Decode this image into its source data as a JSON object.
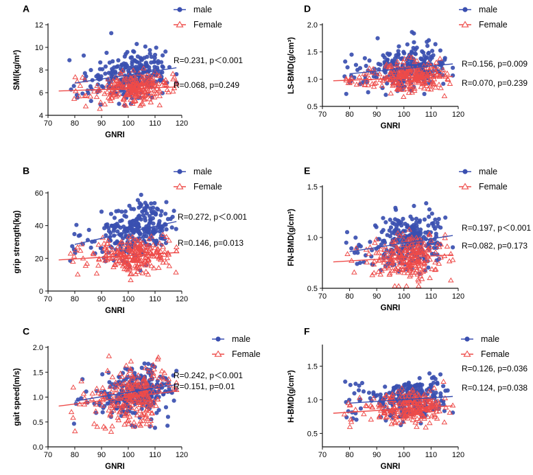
{
  "figure": {
    "panel_count": 6
  },
  "colors": {
    "male": "#3a4fb0",
    "female": "#ee4b49",
    "axis": "#111111"
  },
  "legend": {
    "male_label": "male",
    "female_label": "Female"
  },
  "chart_data": [
    {
      "id": "A",
      "letter": "A",
      "type": "scatter",
      "xlabel": "GNRI",
      "ylabel": "SMI(kg/m²)",
      "xlim": [
        70,
        120
      ],
      "ylim": [
        4,
        12
      ],
      "xticks": [
        70,
        80,
        90,
        100,
        110,
        120
      ],
      "yticks": [
        4,
        6,
        8,
        10,
        12
      ],
      "ytick_labels": [
        "4",
        "6",
        "8",
        "10",
        "12"
      ],
      "series": [
        {
          "name": "male",
          "mean_y": 7.5,
          "sd_y": 1.05,
          "n": 280,
          "seed": 11,
          "fit": {
            "x": [
              80,
              118
            ],
            "y": [
              6.85,
              8.2
            ]
          },
          "stat": "R=0.231, p＜0.001"
        },
        {
          "name": "Female",
          "mean_y": 6.2,
          "sd_y": 0.65,
          "n": 240,
          "seed": 12,
          "fit": {
            "x": [
              74,
              118
            ],
            "y": [
              6.15,
              6.5
            ]
          },
          "stat": "R=0.068, p=0.249"
        }
      ]
    },
    {
      "id": "D",
      "letter": "D",
      "type": "scatter",
      "xlabel": "GNRI",
      "ylabel": "LS-BMD(g/cm³)",
      "xlim": [
        70,
        120
      ],
      "ylim": [
        0.5,
        2.0
      ],
      "xticks": [
        70,
        80,
        90,
        100,
        110,
        120
      ],
      "yticks": [
        0.5,
        1.0,
        1.5,
        2.0
      ],
      "ytick_labels": [
        "0.5",
        "1.0",
        "1.5",
        "2.0"
      ],
      "series": [
        {
          "name": "male",
          "mean_y": 1.18,
          "sd_y": 0.2,
          "n": 280,
          "seed": 21,
          "fit": {
            "x": [
              80,
              118
            ],
            "y": [
              1.1,
              1.28
            ]
          },
          "stat": "R=0.156, p=0.009"
        },
        {
          "name": "Female",
          "mean_y": 0.96,
          "sd_y": 0.13,
          "n": 240,
          "seed": 22,
          "fit": {
            "x": [
              74,
              118
            ],
            "y": [
              0.97,
              1.05
            ]
          },
          "stat": "R=0.070, p=0.239"
        }
      ]
    },
    {
      "id": "B",
      "letter": "B",
      "type": "scatter",
      "xlabel": "GNRI",
      "ylabel": "grip strength(kg)",
      "xlim": [
        70,
        120
      ],
      "ylim": [
        0,
        60
      ],
      "xticks": [
        70,
        80,
        90,
        100,
        110,
        120
      ],
      "yticks": [
        0,
        20,
        40,
        60
      ],
      "ytick_labels": [
        "0",
        "20",
        "40",
        "60"
      ],
      "series": [
        {
          "name": "male",
          "mean_y": 36,
          "sd_y": 7.5,
          "n": 280,
          "seed": 31,
          "fit": {
            "x": [
              80,
              118
            ],
            "y": [
              28.5,
              42.5
            ]
          },
          "stat": "R=0.272,  p＜0.001"
        },
        {
          "name": "Female",
          "mean_y": 21,
          "sd_y": 5.2,
          "n": 240,
          "seed": 32,
          "fit": {
            "x": [
              74,
              118
            ],
            "y": [
              19.0,
              23.5
            ]
          },
          "stat": "R=0.146,   p=0.013"
        }
      ]
    },
    {
      "id": "E",
      "letter": "E",
      "type": "scatter",
      "xlabel": "GNRI",
      "ylabel": "FN-BMD(g/cm³)",
      "xlim": [
        70,
        120
      ],
      "ylim": [
        0.5,
        1.5
      ],
      "xticks": [
        70,
        80,
        90,
        100,
        110,
        120
      ],
      "yticks": [
        0.5,
        1.0,
        1.5
      ],
      "ytick_labels": [
        "0.5",
        "1.0",
        "1.5"
      ],
      "series": [
        {
          "name": "male",
          "mean_y": 0.92,
          "sd_y": 0.14,
          "n": 280,
          "seed": 41,
          "fit": {
            "x": [
              80,
              118
            ],
            "y": [
              0.86,
              1.02
            ]
          },
          "stat": "R=0.197, p＜0.001"
        },
        {
          "name": "Female",
          "mean_y": 0.78,
          "sd_y": 0.11,
          "n": 240,
          "seed": 42,
          "fit": {
            "x": [
              74,
              118
            ],
            "y": [
              0.76,
              0.83
            ]
          },
          "stat": "R=0.082, p=0.173"
        }
      ]
    },
    {
      "id": "C",
      "letter": "C",
      "type": "scatter",
      "xlabel": "GNRI",
      "ylabel": "gait speed(m/s)",
      "xlim": [
        70,
        120
      ],
      "ylim": [
        0,
        2.0
      ],
      "xticks": [
        70,
        80,
        90,
        100,
        110,
        120
      ],
      "yticks": [
        0,
        0.5,
        1.0,
        1.5,
        2.0
      ],
      "ytick_labels": [
        "0.0",
        "0.5",
        "1.0",
        "1.5",
        "2.0"
      ],
      "series": [
        {
          "name": "male",
          "mean_y": 1.12,
          "sd_y": 0.25,
          "n": 280,
          "seed": 51,
          "fit": {
            "x": [
              80,
              118
            ],
            "y": [
              0.92,
              1.25
            ]
          },
          "stat": "R=0.242, p＜0.001"
        },
        {
          "name": "Female",
          "mean_y": 0.98,
          "sd_y": 0.27,
          "n": 240,
          "seed": 52,
          "fit": {
            "x": [
              74,
              118
            ],
            "y": [
              0.82,
              1.12
            ]
          },
          "stat": "R=0.151,  p=0.01"
        }
      ]
    },
    {
      "id": "F",
      "letter": "F",
      "type": "scatter",
      "xlabel": "GNRI",
      "ylabel": "H-BMD(g/cm³)",
      "xlim": [
        70,
        120
      ],
      "ylim": [
        0.3,
        1.8
      ],
      "xticks": [
        70,
        80,
        90,
        100,
        110,
        120
      ],
      "yticks": [
        0.5,
        1.0,
        1.5
      ],
      "ytick_labels": [
        "0.5",
        "1.0",
        "1.5"
      ],
      "series": [
        {
          "name": "male",
          "mean_y": 1.0,
          "sd_y": 0.15,
          "n": 280,
          "seed": 61,
          "fit": {
            "x": [
              80,
              118
            ],
            "y": [
              0.95,
              1.05
            ]
          },
          "stat": "R=0.126, p=0.036"
        },
        {
          "name": "Female",
          "mean_y": 0.86,
          "sd_y": 0.12,
          "n": 240,
          "seed": 62,
          "fit": {
            "x": [
              74,
              118
            ],
            "y": [
              0.8,
              0.91
            ]
          },
          "stat": "R=0.124, p=0.038"
        }
      ]
    }
  ]
}
